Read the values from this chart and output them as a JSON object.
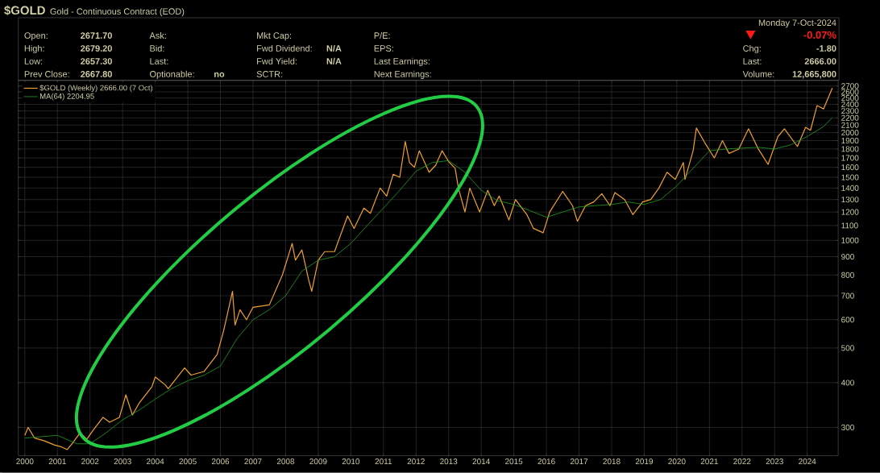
{
  "chart_data": {
    "type": "line",
    "title": "$GOLD",
    "subtitle": "Gold - Continuous Contract (EOD)",
    "annotations": [
      "Open:",
      "2671.70",
      "High:",
      "2679.20",
      "Low:",
      "2657.30",
      "Prev Close:",
      "2667.80",
      "Ask:",
      "Bid:",
      "Last:",
      "Optionable:",
      "no",
      "Mkt Cap:",
      "Fwd Dividend:",
      "N/A",
      "Fwd Yield:",
      "N/A",
      "SCTR:",
      "P/E:",
      "EPS:",
      "Last Earnings:",
      "Next Earnings:",
      "Monday  7-Oct-2024",
      "-0.07%",
      "Chg:",
      "-1.80",
      "Last:",
      "2666.00",
      "Volume:",
      "12,665,800"
    ],
    "series": [
      {
        "name": "$GOLD (Weekly) 2666.00 (7 Oct)",
        "color": "#f0a030",
        "x": [
          2000.0,
          2000.1,
          2000.3,
          2000.6,
          2000.9,
          2001.1,
          2001.3,
          2001.45,
          2001.7,
          2001.9,
          2002.1,
          2002.4,
          2002.6,
          2002.9,
          2003.1,
          2003.3,
          2003.5,
          2003.9,
          2004.0,
          2004.3,
          2004.4,
          2004.9,
          2005.1,
          2005.5,
          2005.9,
          2006.1,
          2006.37,
          2006.45,
          2006.6,
          2006.8,
          2007.0,
          2007.5,
          2007.9,
          2008.2,
          2008.3,
          2008.5,
          2008.7,
          2008.8,
          2009.0,
          2009.2,
          2009.5,
          2009.9,
          2010.1,
          2010.4,
          2010.6,
          2010.9,
          2011.1,
          2011.3,
          2011.5,
          2011.67,
          2011.8,
          2011.95,
          2012.1,
          2012.4,
          2012.6,
          2012.8,
          2013.0,
          2013.2,
          2013.3,
          2013.5,
          2013.65,
          2013.95,
          2014.2,
          2014.4,
          2014.55,
          2014.85,
          2015.05,
          2015.4,
          2015.6,
          2015.9,
          2016.1,
          2016.5,
          2016.8,
          2016.95,
          2017.2,
          2017.45,
          2017.7,
          2017.95,
          2018.1,
          2018.4,
          2018.65,
          2018.95,
          2019.2,
          2019.45,
          2019.7,
          2019.95,
          2020.2,
          2020.25,
          2020.5,
          2020.6,
          2020.85,
          2021.15,
          2021.4,
          2021.6,
          2021.9,
          2022.2,
          2022.5,
          2022.8,
          2023.1,
          2023.3,
          2023.7,
          2023.95,
          2024.1,
          2024.3,
          2024.5,
          2024.77
        ],
        "values": [
          285,
          300,
          280,
          275,
          268,
          265,
          260,
          270,
          290,
          278,
          295,
          320,
          310,
          320,
          370,
          325,
          350,
          390,
          415,
          395,
          385,
          440,
          420,
          430,
          480,
          560,
          720,
          580,
          640,
          600,
          650,
          660,
          800,
          980,
          880,
          940,
          780,
          720,
          880,
          930,
          930,
          1170,
          1080,
          1230,
          1190,
          1400,
          1330,
          1530,
          1500,
          1890,
          1650,
          1600,
          1780,
          1550,
          1620,
          1780,
          1660,
          1590,
          1400,
          1200,
          1400,
          1200,
          1380,
          1250,
          1330,
          1140,
          1300,
          1180,
          1080,
          1050,
          1200,
          1370,
          1250,
          1130,
          1250,
          1280,
          1350,
          1250,
          1360,
          1300,
          1180,
          1280,
          1300,
          1400,
          1550,
          1480,
          1650,
          1480,
          1780,
          2060,
          1880,
          1700,
          1900,
          1750,
          1800,
          2050,
          1800,
          1630,
          1950,
          2050,
          1830,
          2070,
          2030,
          2380,
          2330,
          2666
        ]
      },
      {
        "name": "MA(64) 2204.95",
        "color": "#22a022",
        "x": [
          2000.0,
          2001.0,
          2001.6,
          2002.0,
          2002.5,
          2003.0,
          2003.5,
          2004.0,
          2004.5,
          2005.0,
          2005.5,
          2006.0,
          2006.5,
          2007.0,
          2007.5,
          2008.0,
          2008.5,
          2009.0,
          2009.5,
          2010.0,
          2010.5,
          2011.0,
          2011.5,
          2012.0,
          2012.5,
          2013.0,
          2013.5,
          2014.0,
          2014.5,
          2015.0,
          2015.5,
          2016.0,
          2016.5,
          2017.0,
          2017.5,
          2018.0,
          2018.5,
          2019.0,
          2019.5,
          2020.0,
          2020.5,
          2021.0,
          2021.5,
          2022.0,
          2022.5,
          2023.0,
          2023.5,
          2024.0,
          2024.5,
          2024.77
        ],
        "values": [
          280,
          285,
          270,
          270,
          290,
          315,
          335,
          360,
          385,
          405,
          420,
          445,
          530,
          600,
          640,
          700,
          820,
          880,
          900,
          980,
          1100,
          1230,
          1380,
          1560,
          1650,
          1670,
          1550,
          1380,
          1290,
          1260,
          1210,
          1160,
          1200,
          1240,
          1250,
          1260,
          1280,
          1260,
          1300,
          1420,
          1590,
          1780,
          1800,
          1810,
          1820,
          1800,
          1850,
          1950,
          2080,
          2204.95
        ]
      }
    ],
    "xlim": [
      1999.8,
      2024.95
    ],
    "ylim": [
      250,
      2800
    ],
    "xticks": [
      2000,
      2001,
      2002,
      2003,
      2004,
      2005,
      2006,
      2007,
      2008,
      2009,
      2010,
      2011,
      2012,
      2013,
      2014,
      2015,
      2016,
      2017,
      2018,
      2019,
      2020,
      2021,
      2022,
      2023,
      2024
    ],
    "yticks": [
      300,
      400,
      500,
      600,
      700,
      800,
      900,
      1000,
      1100,
      1200,
      1300,
      1400,
      1500,
      1600,
      1700,
      1800,
      1900,
      2000,
      2100,
      2200,
      2300,
      2400,
      2500,
      2600,
      2700
    ],
    "log": true,
    "grid": true,
    "legend": "top left"
  }
}
